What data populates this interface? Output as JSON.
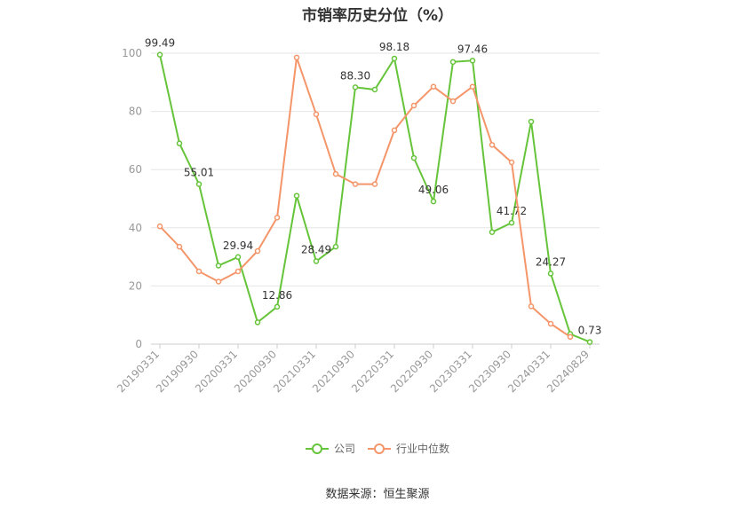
{
  "chart_data": {
    "type": "line",
    "title": "市销率历史分位（%）",
    "x": [
      "20190331",
      "20190630",
      "20190930",
      "20191231",
      "20200331",
      "20200630",
      "20200930",
      "20201231",
      "20210331",
      "20210630",
      "20210930",
      "20211231",
      "20220331",
      "20220630",
      "20220930",
      "20221231",
      "20230331",
      "20230630",
      "20230930",
      "20231231",
      "20240331",
      "20240630",
      "20240829"
    ],
    "x_tick_labels": [
      "20190331",
      "20190930",
      "20200331",
      "20200930",
      "20210331",
      "20210930",
      "20220331",
      "20220930",
      "20230331",
      "20230930",
      "20240331",
      "20240829"
    ],
    "ylim": [
      0,
      100
    ],
    "y_ticks": [
      0,
      20,
      40,
      60,
      80,
      100
    ],
    "grid": true,
    "legend_position": "bottom",
    "series": [
      {
        "name": "公司",
        "color": "#66c43a",
        "values": [
          99.49,
          69.0,
          55.01,
          27.0,
          29.94,
          7.5,
          12.86,
          51.0,
          28.49,
          33.5,
          88.3,
          87.5,
          98.18,
          64.0,
          49.06,
          97.0,
          97.46,
          38.5,
          41.72,
          76.5,
          24.27,
          3.5,
          0.73
        ],
        "labeled_indices": [
          0,
          2,
          4,
          6,
          8,
          10,
          12,
          14,
          16,
          18,
          20,
          22
        ]
      },
      {
        "name": "行业中位数",
        "color": "#f4956a",
        "values": [
          40.5,
          33.5,
          25.0,
          21.5,
          25.0,
          32.0,
          43.5,
          98.5,
          79.0,
          58.5,
          55.0,
          55.0,
          73.5,
          82.0,
          88.5,
          83.5,
          88.5,
          68.5,
          62.5,
          13.0,
          7.0,
          2.5,
          null
        ]
      }
    ]
  },
  "legend": {
    "company": "公司",
    "industry": "行业中位数"
  },
  "source": "数据来源：恒生聚源"
}
